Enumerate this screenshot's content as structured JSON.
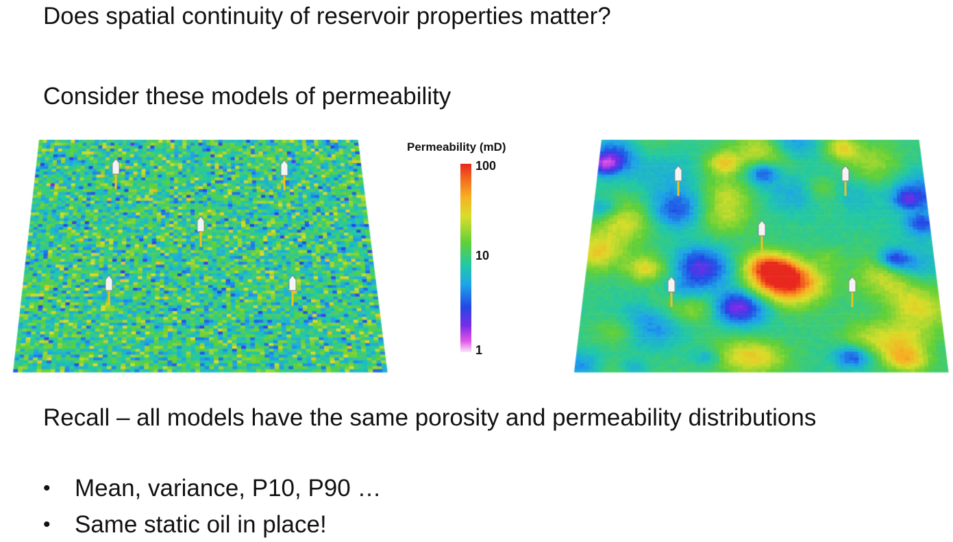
{
  "slide": {
    "title": "Does spatial continuity of reservoir properties matter?",
    "subtitle": "Consider these models of permeability",
    "recall": "Recall – all models have the same porosity and permeability distributions",
    "bullets": [
      "Mean, variance, P10, P90 …",
      "Same static oil in place!"
    ]
  },
  "legend": {
    "title": "Permeability (mD)",
    "ticks": [
      "100",
      "10",
      "1"
    ]
  },
  "colors": {
    "high": "#e8281e",
    "mid": "#1ea5e8",
    "low": "#fbe6fb"
  }
}
